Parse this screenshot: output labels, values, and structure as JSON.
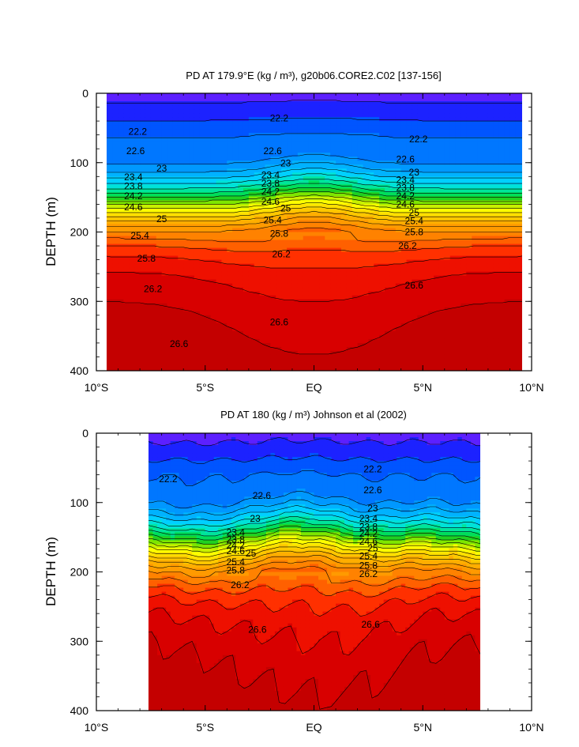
{
  "chart_data": [
    {
      "type": "contour",
      "title": "PD AT 179.9°E (kg / m³), g20b06.CORE2.C02 [137-156]",
      "ylabel": "DEPTH (m)",
      "xlabel": "",
      "x_ticks": [
        "10°S",
        "5°S",
        "EQ",
        "5°N",
        "10°N"
      ],
      "y_ticks": [
        "0",
        "100",
        "200",
        "300",
        "400"
      ],
      "xlim": [
        -10,
        10
      ],
      "ylim": [
        400,
        0
      ],
      "data_xlim": [
        -10,
        10
      ],
      "contour_levels": [
        21.0,
        21.4,
        21.8,
        22.2,
        22.6,
        23.0,
        23.2,
        23.4,
        23.6,
        23.8,
        24.0,
        24.2,
        24.4,
        24.6,
        24.8,
        25.0,
        25.2,
        25.4,
        25.6,
        25.8,
        26.0,
        26.2,
        26.4,
        26.6,
        26.8
      ],
      "contour_labels": [
        {
          "text": "22.2",
          "x": -8.1,
          "depth": 55
        },
        {
          "text": "22.2",
          "x": -1.6,
          "depth": 36
        },
        {
          "text": "22.2",
          "x": 4.8,
          "depth": 66
        },
        {
          "text": "22.6",
          "x": -8.2,
          "depth": 83
        },
        {
          "text": "22.6",
          "x": -1.9,
          "depth": 83
        },
        {
          "text": "22.6",
          "x": 4.2,
          "depth": 95
        },
        {
          "text": "23",
          "x": -7.0,
          "depth": 108
        },
        {
          "text": "23",
          "x": -1.3,
          "depth": 101
        },
        {
          "text": "23",
          "x": 4.6,
          "depth": 114
        },
        {
          "text": "23.4",
          "x": -8.3,
          "depth": 121
        },
        {
          "text": "23.4",
          "x": -2.0,
          "depth": 118
        },
        {
          "text": "23.4",
          "x": 4.2,
          "depth": 125
        },
        {
          "text": "23.8",
          "x": -8.3,
          "depth": 134
        },
        {
          "text": "23.8",
          "x": -2.0,
          "depth": 130
        },
        {
          "text": "23.8",
          "x": 4.2,
          "depth": 136
        },
        {
          "text": "24.2",
          "x": -8.3,
          "depth": 148
        },
        {
          "text": "24.2",
          "x": -2.0,
          "depth": 142
        },
        {
          "text": "24.2",
          "x": 4.2,
          "depth": 148
        },
        {
          "text": "24.6",
          "x": -8.3,
          "depth": 164
        },
        {
          "text": "24.6",
          "x": -2.0,
          "depth": 156
        },
        {
          "text": "24.6",
          "x": 4.2,
          "depth": 160
        },
        {
          "text": "25",
          "x": -7.0,
          "depth": 181
        },
        {
          "text": "25",
          "x": -1.3,
          "depth": 166
        },
        {
          "text": "25",
          "x": 4.6,
          "depth": 172
        },
        {
          "text": "25.4",
          "x": -8.0,
          "depth": 205
        },
        {
          "text": "25.4",
          "x": -1.9,
          "depth": 183
        },
        {
          "text": "25.4",
          "x": 4.6,
          "depth": 184
        },
        {
          "text": "25.8",
          "x": -7.7,
          "depth": 238
        },
        {
          "text": "25.8",
          "x": -1.6,
          "depth": 202
        },
        {
          "text": "25.8",
          "x": 4.6,
          "depth": 200
        },
        {
          "text": "26.2",
          "x": -7.4,
          "depth": 282
        },
        {
          "text": "26.2",
          "x": -1.5,
          "depth": 232
        },
        {
          "text": "26.2",
          "x": 4.3,
          "depth": 220
        },
        {
          "text": "26.6",
          "x": -6.2,
          "depth": 361
        },
        {
          "text": "26.6",
          "x": -1.6,
          "depth": 330
        },
        {
          "text": "26.6",
          "x": 4.6,
          "depth": 277
        }
      ]
    },
    {
      "type": "contour",
      "title": "PD AT 180 (kg / m³) Johnson et al (2002)",
      "ylabel": "DEPTH (m)",
      "xlabel": "",
      "x_ticks": [
        "10°S",
        "5°S",
        "EQ",
        "5°N",
        "10°N"
      ],
      "y_ticks": [
        "0",
        "100",
        "200",
        "300",
        "400"
      ],
      "xlim": [
        -10,
        10
      ],
      "ylim": [
        400,
        0
      ],
      "data_xlim": [
        -8,
        8
      ],
      "contour_levels": [
        21.0,
        21.4,
        21.8,
        22.2,
        22.6,
        23.0,
        23.2,
        23.4,
        23.6,
        23.8,
        24.0,
        24.2,
        24.4,
        24.6,
        24.8,
        25.0,
        25.2,
        25.4,
        25.6,
        25.8,
        26.0,
        26.2,
        26.4,
        26.6,
        26.8
      ],
      "contour_labels": [
        {
          "text": "22.2",
          "x": -6.7,
          "depth": 66
        },
        {
          "text": "22.2",
          "x": 2.7,
          "depth": 52
        },
        {
          "text": "22.6",
          "x": -2.4,
          "depth": 90
        },
        {
          "text": "22.6",
          "x": 2.7,
          "depth": 82
        },
        {
          "text": "23",
          "x": -2.7,
          "depth": 123
        },
        {
          "text": "23",
          "x": 2.7,
          "depth": 108
        },
        {
          "text": "23.4",
          "x": -3.6,
          "depth": 143
        },
        {
          "text": "23.4",
          "x": 2.5,
          "depth": 123
        },
        {
          "text": "23.8",
          "x": -3.6,
          "depth": 153
        },
        {
          "text": "23.8",
          "x": 2.5,
          "depth": 135
        },
        {
          "text": "24.2",
          "x": -3.6,
          "depth": 162
        },
        {
          "text": "24.2",
          "x": 2.5,
          "depth": 145
        },
        {
          "text": "24.6",
          "x": -3.6,
          "depth": 170
        },
        {
          "text": "24.6",
          "x": 2.5,
          "depth": 156
        },
        {
          "text": "25",
          "x": -2.9,
          "depth": 173
        },
        {
          "text": "25",
          "x": 2.7,
          "depth": 166
        },
        {
          "text": "25.4",
          "x": -3.6,
          "depth": 186
        },
        {
          "text": "25.4",
          "x": 2.5,
          "depth": 177
        },
        {
          "text": "25.8",
          "x": -3.6,
          "depth": 198
        },
        {
          "text": "25.8",
          "x": 2.5,
          "depth": 191
        },
        {
          "text": "26.2",
          "x": -3.4,
          "depth": 219
        },
        {
          "text": "26.2",
          "x": 2.5,
          "depth": 203
        },
        {
          "text": "26.6",
          "x": -2.6,
          "depth": 283
        },
        {
          "text": "26.6",
          "x": 2.6,
          "depth": 276
        }
      ]
    }
  ],
  "colors": {
    "band_scale": [
      "#cc00cc",
      "#8d00ff",
      "#5d20ff",
      "#1c22ff",
      "#0055ff",
      "#0077ff",
      "#0098ff",
      "#00b2ff",
      "#00d0ff",
      "#00e2d8",
      "#00e59a",
      "#00de5a",
      "#20d020",
      "#7ee600",
      "#c8f000",
      "#ffff00",
      "#ffe000",
      "#ffc800",
      "#ffae00",
      "#ff9a00",
      "#ff8200",
      "#ff6000",
      "#ff3000",
      "#ee1000",
      "#d80000",
      "#c40000"
    ]
  }
}
